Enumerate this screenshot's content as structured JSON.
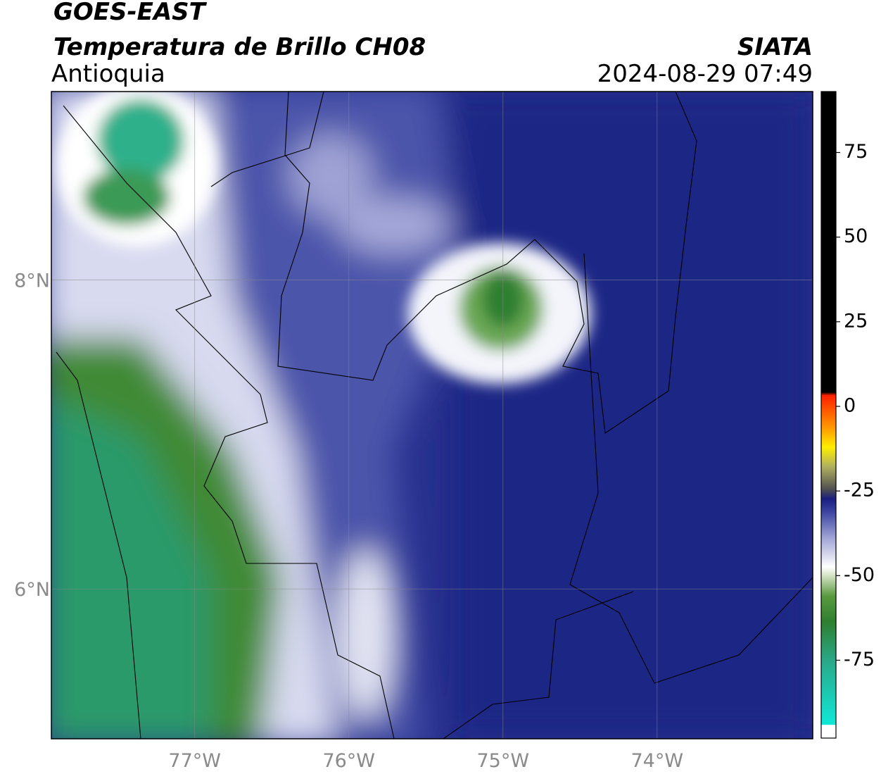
{
  "header": {
    "title": "GOES-EAST",
    "product": "Temperatura de Brillo CH08",
    "region": "Antioquia",
    "source": "SIATA",
    "timestamp": "2024-08-29 07:49"
  },
  "map": {
    "xlim": [
      -77.93,
      -72.99
    ],
    "ylim": [
      5.03,
      9.22
    ],
    "xticks": [
      {
        "value": -77,
        "label": "77°W"
      },
      {
        "value": -76,
        "label": "76°W"
      },
      {
        "value": -75,
        "label": "75°W"
      },
      {
        "value": -74,
        "label": "74°W"
      }
    ],
    "yticks": [
      {
        "value": 6,
        "label": "6°N"
      },
      {
        "value": 8,
        "label": "8°N"
      }
    ],
    "grid": true
  },
  "colorbar": {
    "lim": [
      -98,
      93
    ],
    "ticks": [
      -75,
      -50,
      -25,
      0,
      25,
      50,
      75
    ]
  }
}
